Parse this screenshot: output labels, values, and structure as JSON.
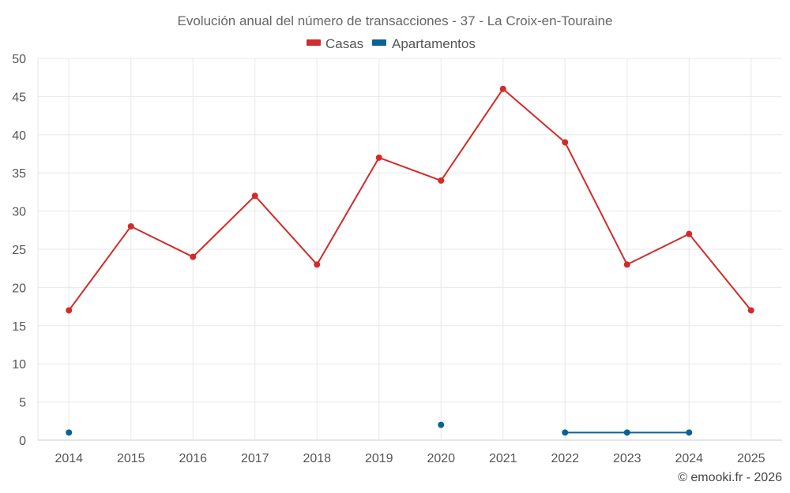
{
  "chart_data": {
    "type": "line",
    "title": "Evolución anual del número de transacciones - 37 - La Croix-en-Touraine",
    "categories": [
      "2014",
      "2015",
      "2016",
      "2017",
      "2018",
      "2019",
      "2020",
      "2021",
      "2022",
      "2023",
      "2024",
      "2025"
    ],
    "ylim": [
      0,
      50
    ],
    "yticks": [
      0,
      5,
      10,
      15,
      20,
      25,
      30,
      35,
      40,
      45,
      50
    ],
    "grid": true,
    "legend_position": "top-center",
    "series": [
      {
        "name": "Casas",
        "color": "#d32a2a",
        "values": [
          17,
          28,
          24,
          32,
          23,
          37,
          34,
          46,
          39,
          23,
          27,
          17
        ]
      },
      {
        "name": "Apartamentos",
        "color": "#0b6296",
        "values": [
          1,
          null,
          null,
          null,
          null,
          null,
          2,
          null,
          1,
          1,
          1,
          null
        ]
      }
    ]
  },
  "credit": "© emooki.fr - 2026"
}
